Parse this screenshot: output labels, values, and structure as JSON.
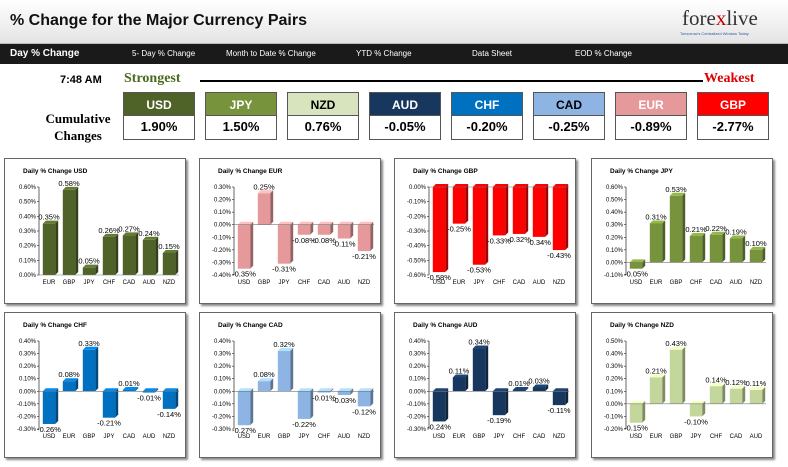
{
  "header": {
    "title": "% Change for the Major Currency Pairs",
    "logo_text_a": "fore",
    "logo_text_x": "x",
    "logo_text_b": "live",
    "logo_tagline": "Tomorrow's Centralized Window Today"
  },
  "nav": {
    "items": [
      "Day % Change",
      "5- Day % Change",
      "Month to Date % Change",
      "YTD % Change",
      "Data Sheet",
      "EOD % Change"
    ]
  },
  "time": "7:48 AM",
  "strongest_label": "Strongest",
  "weakest_label": "Weakest",
  "cumulative_label": "Cumulative Changes",
  "currencies": [
    {
      "name": "USD",
      "value": "1.90%",
      "color": "#4f6228",
      "text": "#ffffff"
    },
    {
      "name": "JPY",
      "value": "1.50%",
      "color": "#77933c",
      "text": "#ffffff"
    },
    {
      "name": "NZD",
      "value": "0.76%",
      "color": "#d7e4bd",
      "text": "#000000"
    },
    {
      "name": "AUD",
      "value": "-0.05%",
      "color": "#17375e",
      "text": "#ffffff"
    },
    {
      "name": "CHF",
      "value": "-0.20%",
      "color": "#0070c0",
      "text": "#ffffff"
    },
    {
      "name": "CAD",
      "value": "-0.25%",
      "color": "#8db4e2",
      "text": "#000000"
    },
    {
      "name": "EUR",
      "value": "-0.89%",
      "color": "#e6999a",
      "text": "#ffffff"
    },
    {
      "name": "GBP",
      "value": "-2.77%",
      "color": "#ff0000",
      "text": "#ffffff"
    }
  ],
  "chart_data": [
    {
      "type": "bar",
      "title": "Daily % Change USD",
      "categories": [
        "EUR",
        "GBP",
        "JPY",
        "CHF",
        "CAD",
        "AUD",
        "NZD"
      ],
      "values": [
        0.35,
        0.58,
        0.05,
        0.26,
        0.27,
        0.24,
        0.15
      ],
      "labels": [
        "0.35%",
        "0.58%",
        "0.05%",
        "0.26%",
        "0.27%",
        "0.24%",
        "0.15%"
      ],
      "ylim": [
        0,
        0.6
      ],
      "yticks": [
        "0.60%",
        "0.50%",
        "0.40%",
        "0.30%",
        "0.20%",
        "0.10%",
        "0.00%"
      ],
      "color": "#4f6228"
    },
    {
      "type": "bar",
      "title": "Daily % Change EUR",
      "categories": [
        "USD",
        "GBP",
        "JPY",
        "CHF",
        "CAD",
        "AUD",
        "NZD"
      ],
      "values": [
        -0.35,
        0.25,
        -0.31,
        -0.08,
        -0.08,
        -0.11,
        -0.21
      ],
      "labels": [
        "-0.35%",
        "0.25%",
        "-0.31%",
        "-0.08%",
        "-0.08%",
        "-0.11%",
        "-0.21%"
      ],
      "ylim": [
        -0.4,
        0.3
      ],
      "yticks": [
        "0.30%",
        "0.20%",
        "0.10%",
        "0.00%",
        "-0.10%",
        "-0.20%",
        "-0.30%",
        "-0.40%"
      ],
      "color": "#e6999a"
    },
    {
      "type": "bar",
      "title": "Daily % Change GBP",
      "categories": [
        "USD",
        "EUR",
        "JPY",
        "CHF",
        "CAD",
        "AUD",
        "NZD"
      ],
      "values": [
        -0.58,
        -0.25,
        -0.53,
        -0.33,
        -0.32,
        -0.34,
        -0.43
      ],
      "labels": [
        "-0.58%",
        "-0.25%",
        "-0.53%",
        "-0.33%",
        "-0.32%",
        "-0.34%",
        "-0.43%"
      ],
      "ylim": [
        -0.6,
        0.0
      ],
      "yticks": [
        "0.00%",
        "-0.10%",
        "-0.20%",
        "-0.30%",
        "-0.40%",
        "-0.50%",
        "-0.60%"
      ],
      "color": "#ff0000"
    },
    {
      "type": "bar",
      "title": "Daily % Change JPY",
      "categories": [
        "USD",
        "EUR",
        "GBP",
        "CHF",
        "CAD",
        "AUD",
        "NZD"
      ],
      "values": [
        -0.05,
        0.31,
        0.53,
        0.21,
        0.22,
        0.19,
        0.1
      ],
      "labels": [
        "-0.05%",
        "0.31%",
        "0.53%",
        "0.21%",
        "0.22%",
        "0.19%",
        "0.10%"
      ],
      "ylim": [
        -0.1,
        0.6
      ],
      "yticks": [
        "0.60%",
        "0.50%",
        "0.40%",
        "0.30%",
        "0.20%",
        "0.10%",
        "0.00%",
        "-0.10%"
      ],
      "color": "#77933c"
    },
    {
      "type": "bar",
      "title": "Daily % Change CHF",
      "categories": [
        "USD",
        "EUR",
        "GBP",
        "JPY",
        "CAD",
        "AUD",
        "NZD"
      ],
      "values": [
        -0.26,
        0.08,
        0.33,
        -0.21,
        0.01,
        -0.01,
        -0.14
      ],
      "labels": [
        "-0.26%",
        "0.08%",
        "0.33%",
        "-0.21%",
        "0.01%",
        "-0.01%",
        "-0.14%"
      ],
      "ylim": [
        -0.3,
        0.4
      ],
      "yticks": [
        "0.40%",
        "0.30%",
        "0.20%",
        "0.10%",
        "0.00%",
        "-0.10%",
        "-0.20%",
        "-0.30%"
      ],
      "color": "#0070c0"
    },
    {
      "type": "bar",
      "title": "Daily % Change CAD",
      "categories": [
        "USD",
        "EUR",
        "GBP",
        "JPY",
        "CHF",
        "AUD",
        "NZD"
      ],
      "values": [
        -0.27,
        0.08,
        0.32,
        -0.22,
        -0.01,
        -0.03,
        -0.12
      ],
      "labels": [
        "-0.27%",
        "0.08%",
        "0.32%",
        "-0.22%",
        "-0.01%",
        "-0.03%",
        "-0.12%"
      ],
      "ylim": [
        -0.3,
        0.4
      ],
      "yticks": [
        "0.40%",
        "0.30%",
        "0.20%",
        "0.10%",
        "0.00%",
        "-0.10%",
        "-0.20%",
        "-0.30%"
      ],
      "color": "#8db4e2"
    },
    {
      "type": "bar",
      "title": "Daily % Change AUD",
      "categories": [
        "USD",
        "EUR",
        "GBP",
        "JPY",
        "CHF",
        "CAD",
        "NZD"
      ],
      "values": [
        -0.24,
        0.11,
        0.34,
        -0.19,
        0.01,
        0.03,
        -0.11
      ],
      "labels": [
        "-0.24%",
        "0.11%",
        "0.34%",
        "-0.19%",
        "0.01%",
        "0.03%",
        "-0.11%"
      ],
      "ylim": [
        -0.3,
        0.4
      ],
      "yticks": [
        "0.40%",
        "0.30%",
        "0.20%",
        "0.10%",
        "0.00%",
        "-0.10%",
        "-0.20%",
        "-0.30%"
      ],
      "color": "#17375e"
    },
    {
      "type": "bar",
      "title": "Daily % Change NZD",
      "categories": [
        "USD",
        "EUR",
        "GBP",
        "JPY",
        "CHF",
        "CAD",
        "AUD"
      ],
      "values": [
        -0.15,
        0.21,
        0.43,
        -0.1,
        0.14,
        0.12,
        0.11
      ],
      "labels": [
        "-0.15%",
        "0.21%",
        "0.43%",
        "-0.10%",
        "0.14%",
        "0.12%",
        "0.11%"
      ],
      "ylim": [
        -0.2,
        0.5
      ],
      "yticks": [
        "0.50%",
        "0.40%",
        "0.30%",
        "0.20%",
        "0.10%",
        "0.00%",
        "-0.10%",
        "-0.20%"
      ],
      "color": "#c3d69b"
    }
  ]
}
